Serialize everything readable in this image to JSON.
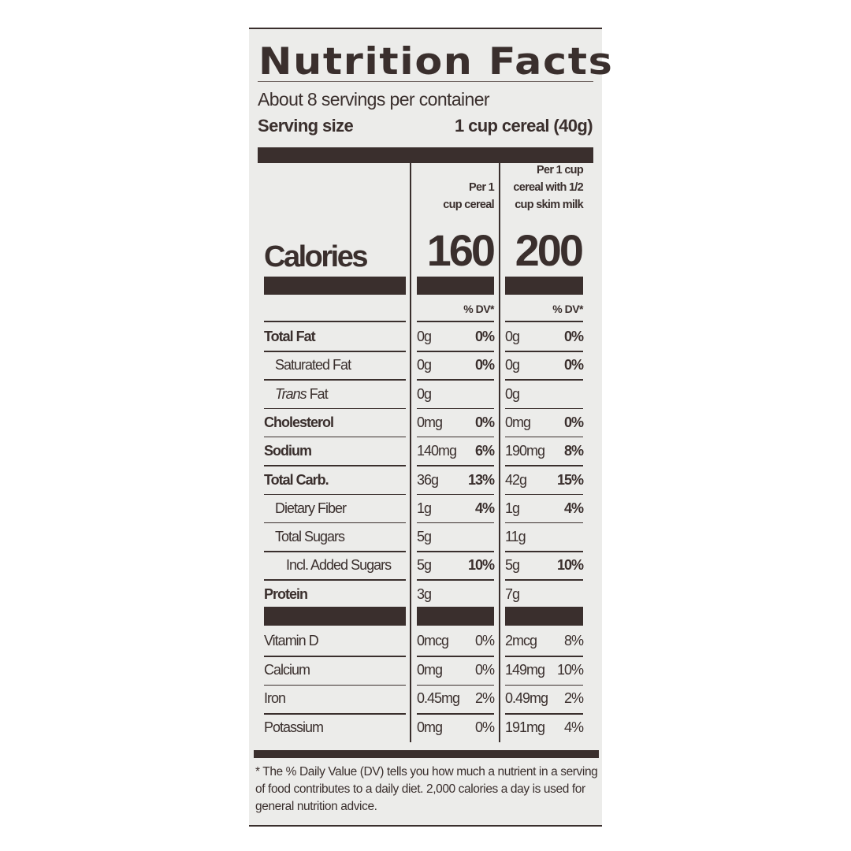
{
  "label": {
    "title": "Nutrition Facts",
    "servings_per_container": "About 8 servings per container",
    "serving_size_label": "Serving size",
    "serving_size_value": "1 cup cereal (40g)",
    "columns": [
      {
        "header": [
          "Per 1",
          "cup cereal"
        ],
        "calories": "160"
      },
      {
        "header": [
          "Per 1 cup",
          "cereal with 1/2",
          "cup skim milk"
        ],
        "calories": "200"
      }
    ],
    "calories_label": "Calories",
    "dv_header": "% DV*",
    "nutrients": [
      {
        "name": "Total Fat",
        "bold": true,
        "indent": 0,
        "c1": [
          "0g",
          "0%"
        ],
        "c2": [
          "0g",
          "0%"
        ]
      },
      {
        "name": "Saturated Fat",
        "bold": false,
        "indent": 1,
        "c1": [
          "0g",
          "0%"
        ],
        "c2": [
          "0g",
          "0%"
        ]
      },
      {
        "name_italic": "Trans",
        "name": " Fat",
        "bold": false,
        "indent": 1,
        "c1": [
          "0g",
          ""
        ],
        "c2": [
          "0g",
          ""
        ]
      },
      {
        "name": "Cholesterol",
        "bold": true,
        "indent": 0,
        "c1": [
          "0mg",
          "0%"
        ],
        "c2": [
          "0mg",
          "0%"
        ]
      },
      {
        "name": "Sodium",
        "bold": true,
        "indent": 0,
        "c1": [
          "140mg",
          "6%"
        ],
        "c2": [
          "190mg",
          "8%"
        ]
      },
      {
        "name": "Total Carb.",
        "bold": true,
        "indent": 0,
        "c1": [
          "36g",
          "13%"
        ],
        "c2": [
          "42g",
          "15%"
        ]
      },
      {
        "name": "Dietary Fiber",
        "bold": false,
        "indent": 1,
        "c1": [
          "1g",
          "4%"
        ],
        "c2": [
          "1g",
          "4%"
        ]
      },
      {
        "name": "Total Sugars",
        "bold": false,
        "indent": 1,
        "c1": [
          "5g",
          ""
        ],
        "c2": [
          "11g",
          ""
        ]
      },
      {
        "name": "Incl. Added Sugars",
        "bold": false,
        "indent": 2,
        "c1": [
          "5g",
          "10%"
        ],
        "c2": [
          "5g",
          "10%"
        ]
      },
      {
        "name": "Protein",
        "bold": true,
        "indent": 0,
        "c1": [
          "3g",
          ""
        ],
        "c2": [
          "7g",
          ""
        ]
      }
    ],
    "vitamins": [
      {
        "name": "Vitamin D",
        "c1": [
          "0mcg",
          "0%"
        ],
        "c2": [
          "2mcg",
          "8%"
        ]
      },
      {
        "name": "Calcium",
        "c1": [
          "0mg",
          "0%"
        ],
        "c2": [
          "149mg",
          "10%"
        ]
      },
      {
        "name": "Iron",
        "c1": [
          "0.45mg",
          "2%"
        ],
        "c2": [
          "0.49mg",
          "2%"
        ]
      },
      {
        "name": "Potassium",
        "c1": [
          "0mg",
          "0%"
        ],
        "c2": [
          "191mg",
          "4%"
        ]
      }
    ],
    "footnote": "* The % Daily Value (DV) tells you how much a nutrient in a serving of food contributes to a daily diet. 2,000 calories a day is used for general nutrition advice."
  },
  "colors": {
    "ink": "#3a2f2d",
    "panel": "#ececea"
  }
}
